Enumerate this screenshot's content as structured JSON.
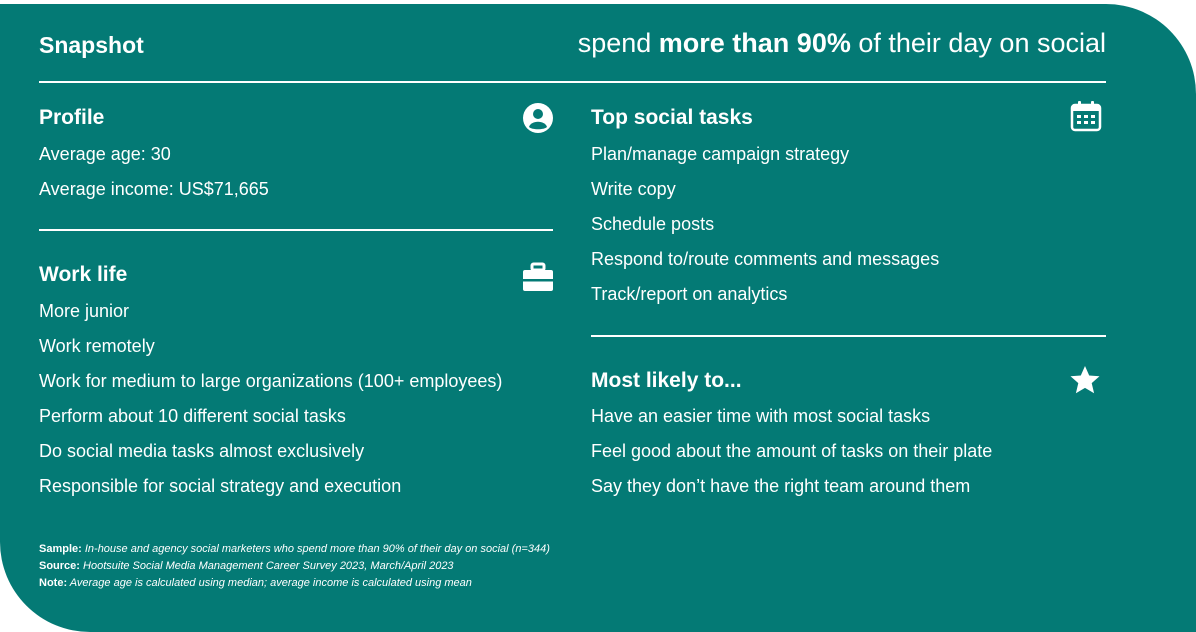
{
  "header": {
    "title": "Snapshot",
    "tagline_pre": "spend ",
    "tagline_bold": "more than 90%",
    "tagline_post": " of their day on social"
  },
  "profile": {
    "title": "Profile",
    "icon": "person-icon",
    "items": [
      "Average age: 30",
      "Average income: US$71,665"
    ]
  },
  "work_life": {
    "title": "Work life",
    "icon": "briefcase-icon",
    "items": [
      "More junior",
      "Work remotely",
      "Work for medium to large organizations (100+ employees)",
      "Perform about 10 different social tasks",
      "Do social media tasks almost exclusively",
      "Responsible for social strategy and execution"
    ]
  },
  "top_tasks": {
    "title": "Top social tasks",
    "icon": "calendar-icon",
    "items": [
      "Plan/manage campaign strategy",
      "Write copy",
      "Schedule posts",
      "Respond to/route comments and messages",
      "Track/report on analytics"
    ]
  },
  "most_likely": {
    "title": "Most likely to...",
    "icon": "star-icon",
    "items": [
      "Have an easier time with most social tasks",
      "Feel good about the amount of tasks on their plate",
      "Say they don’t have the right team around them"
    ]
  },
  "footnotes": {
    "sample_label": "Sample:",
    "sample_text": " In-house and agency social marketers who spend more than 90% of their day on social (n=344)",
    "source_label": "Source:",
    "source_text": " Hootsuite Social Media Management Career Survey 2023, March/April 2023",
    "note_label": "Note:",
    "note_text": " Average age is calculated using median; average income is calculated using mean"
  },
  "colors": {
    "background": "#047a75",
    "text": "#ffffff"
  }
}
